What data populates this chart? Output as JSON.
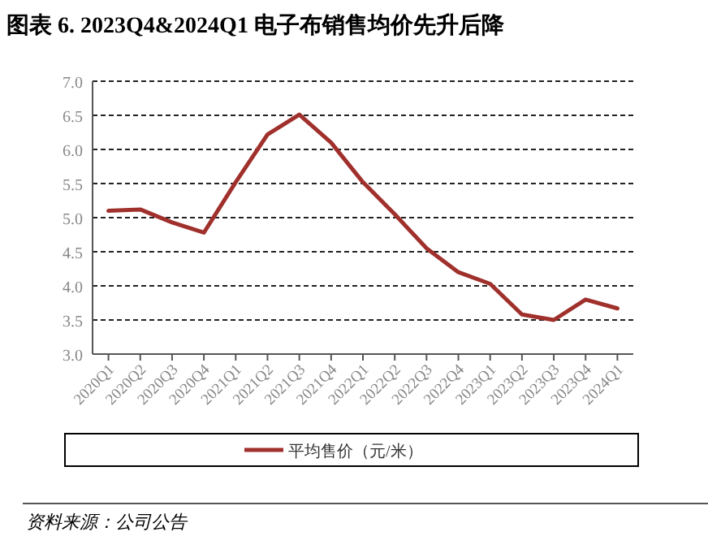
{
  "chart_data": {
    "type": "line",
    "title": "图表 6. 2023Q4&2024Q1 电子布销售均价先升后降",
    "categories": [
      "2020Q1",
      "2020Q2",
      "2020Q3",
      "2020Q4",
      "2021Q1",
      "2021Q2",
      "2021Q3",
      "2021Q4",
      "2022Q1",
      "2022Q2",
      "2022Q3",
      "2022Q4",
      "2023Q1",
      "2023Q2",
      "2023Q3",
      "2023Q4",
      "2024Q1"
    ],
    "series": [
      {
        "name": "平均售价（元/米）",
        "color": "#a0302c",
        "values": [
          5.1,
          5.12,
          4.93,
          4.78,
          5.52,
          6.22,
          6.51,
          6.1,
          5.52,
          5.05,
          4.55,
          4.2,
          4.03,
          3.58,
          3.5,
          3.8,
          3.67
        ]
      }
    ],
    "ylim": [
      3.0,
      7.0
    ],
    "yticks": [
      {
        "value": 3,
        "label": "3.0"
      },
      {
        "value": 3.5,
        "label": "3.5"
      },
      {
        "value": 4,
        "label": "4.0"
      },
      {
        "value": 4.5,
        "label": "4.5"
      },
      {
        "value": 5,
        "label": "5.0"
      },
      {
        "value": 5.5,
        "label": "5.5"
      },
      {
        "value": 6,
        "label": "6.0"
      },
      {
        "value": 6.5,
        "label": "6.5"
      },
      {
        "value": 7,
        "label": "7.0"
      }
    ],
    "grid": "y",
    "legend": "bottom",
    "marker": "none",
    "line_style": "solid",
    "annotations": [
      "资料来源：公司公告"
    ]
  }
}
